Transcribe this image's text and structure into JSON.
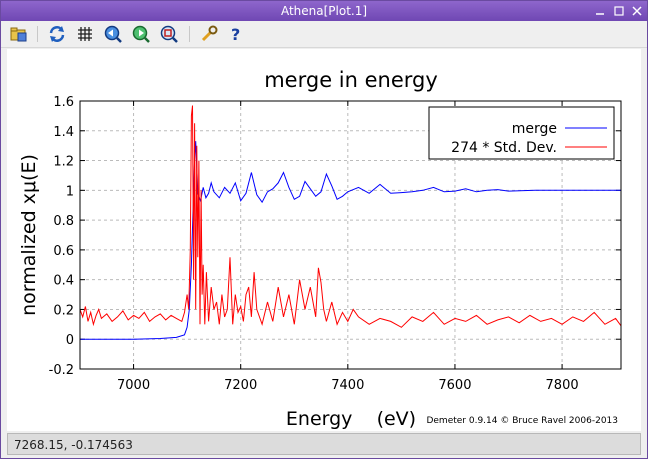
{
  "window": {
    "title": "Athena[Plot.1]",
    "controls": [
      "minimize-icon",
      "restore-icon",
      "close-icon"
    ]
  },
  "toolbar": {
    "buttons": [
      {
        "name": "open-icon",
        "group": 1
      },
      {
        "name": "refresh-icon",
        "group": 2
      },
      {
        "name": "grid-icon",
        "group": 2
      },
      {
        "name": "zoom-in-icon",
        "group": 2
      },
      {
        "name": "zoom-out-icon",
        "group": 2
      },
      {
        "name": "zoom-fit-icon",
        "group": 2
      },
      {
        "name": "settings-icon",
        "group": 3
      },
      {
        "name": "help-icon",
        "group": 3
      }
    ]
  },
  "status": {
    "coordinates": "7268.15, -0.174563"
  },
  "colors": {
    "merge": "#0000ff",
    "stddev": "#ff0000",
    "titlebar": "#7a52bd"
  },
  "chart_data": {
    "type": "line",
    "title": "merge in energy",
    "xlabel": "Energy    (eV)",
    "ylabel": "normalized xμ(E)",
    "credit": "Demeter 0.9.14 © Bruce Ravel 2006-2013",
    "xlim": [
      6900,
      7910
    ],
    "ylim": [
      -0.2,
      1.6
    ],
    "x_ticks": [
      7000,
      7200,
      7400,
      7600,
      7800
    ],
    "y_ticks": [
      -0.2,
      0,
      0.2,
      0.4,
      0.6,
      0.8,
      1,
      1.2,
      1.4,
      1.6
    ],
    "y_tick_labels": [
      "-0.2",
      "0",
      "0.2",
      "0.4",
      "0.6",
      "0.8",
      "1",
      "1.2",
      "1.4",
      "1.6"
    ],
    "grid": true,
    "legend_position": "top-right",
    "series": [
      {
        "name": "merge",
        "color": "#0000ff",
        "x": [
          6900,
          7000,
          7050,
          7080,
          7095,
          7100,
          7104,
          7108,
          7110,
          7112,
          7114,
          7116,
          7118,
          7120,
          7125,
          7130,
          7135,
          7140,
          7145,
          7150,
          7160,
          7170,
          7180,
          7190,
          7200,
          7210,
          7220,
          7230,
          7240,
          7250,
          7260,
          7270,
          7280,
          7290,
          7300,
          7310,
          7320,
          7330,
          7340,
          7350,
          7360,
          7370,
          7380,
          7390,
          7400,
          7420,
          7440,
          7460,
          7480,
          7500,
          7520,
          7540,
          7560,
          7580,
          7600,
          7620,
          7640,
          7660,
          7680,
          7700,
          7750,
          7800,
          7850,
          7910
        ],
        "values": [
          0.0,
          0.0,
          0.005,
          0.012,
          0.03,
          0.08,
          0.2,
          0.5,
          0.75,
          1.0,
          1.2,
          1.33,
          1.15,
          0.98,
          0.93,
          1.02,
          0.95,
          0.98,
          1.05,
          0.99,
          0.95,
          1.02,
          0.98,
          1.05,
          0.93,
          0.98,
          1.12,
          0.97,
          0.92,
          0.99,
          1.01,
          1.05,
          1.12,
          1.02,
          0.94,
          0.96,
          1.06,
          1.01,
          0.96,
          0.99,
          1.11,
          1.03,
          0.94,
          0.96,
          0.99,
          1.02,
          0.98,
          1.04,
          0.98,
          0.985,
          0.99,
          1.0,
          1.02,
          0.99,
          0.995,
          1.01,
          0.99,
          1.0,
          1.005,
          0.995,
          1.0,
          1.0,
          1.0,
          1.0
        ]
      },
      {
        "name": "274 * Std. Dev.",
        "color": "#ff0000",
        "x": [
          6900,
          6905,
          6910,
          6915,
          6920,
          6925,
          6930,
          6935,
          6940,
          6950,
          6960,
          6970,
          6980,
          6990,
          7000,
          7010,
          7020,
          7030,
          7040,
          7050,
          7060,
          7070,
          7080,
          7090,
          7095,
          7100,
          7103,
          7106,
          7108,
          7110,
          7112,
          7114,
          7116,
          7118,
          7120,
          7122,
          7124,
          7126,
          7128,
          7130,
          7133,
          7136,
          7140,
          7145,
          7150,
          7155,
          7160,
          7165,
          7170,
          7175,
          7180,
          7185,
          7190,
          7195,
          7200,
          7205,
          7210,
          7215,
          7220,
          7225,
          7230,
          7240,
          7250,
          7260,
          7270,
          7280,
          7290,
          7300,
          7310,
          7320,
          7330,
          7340,
          7345,
          7350,
          7355,
          7360,
          7370,
          7380,
          7390,
          7400,
          7410,
          7420,
          7440,
          7460,
          7480,
          7500,
          7520,
          7540,
          7560,
          7580,
          7600,
          7620,
          7640,
          7660,
          7680,
          7700,
          7720,
          7740,
          7760,
          7780,
          7800,
          7820,
          7840,
          7860,
          7880,
          7900,
          7910
        ],
        "values": [
          0.2,
          0.15,
          0.22,
          0.12,
          0.18,
          0.1,
          0.16,
          0.2,
          0.14,
          0.17,
          0.12,
          0.15,
          0.19,
          0.13,
          0.16,
          0.14,
          0.18,
          0.12,
          0.15,
          0.17,
          0.13,
          0.16,
          0.14,
          0.12,
          0.18,
          0.3,
          0.2,
          0.6,
          1.5,
          1.57,
          0.4,
          1.45,
          0.2,
          1.3,
          0.55,
          1.2,
          0.1,
          1.0,
          0.3,
          0.5,
          0.1,
          0.45,
          0.12,
          0.35,
          0.2,
          0.25,
          0.1,
          0.3,
          0.15,
          0.2,
          0.55,
          0.1,
          0.3,
          0.18,
          0.22,
          0.12,
          0.3,
          0.35,
          0.15,
          0.45,
          0.2,
          0.1,
          0.25,
          0.12,
          0.35,
          0.15,
          0.3,
          0.1,
          0.4,
          0.2,
          0.35,
          0.15,
          0.48,
          0.38,
          0.2,
          0.12,
          0.25,
          0.1,
          0.18,
          0.12,
          0.2,
          0.15,
          0.1,
          0.14,
          0.12,
          0.08,
          0.15,
          0.12,
          0.18,
          0.1,
          0.14,
          0.12,
          0.16,
          0.1,
          0.13,
          0.15,
          0.11,
          0.16,
          0.12,
          0.14,
          0.1,
          0.15,
          0.12,
          0.18,
          0.1,
          0.14,
          0.09
        ]
      }
    ]
  }
}
